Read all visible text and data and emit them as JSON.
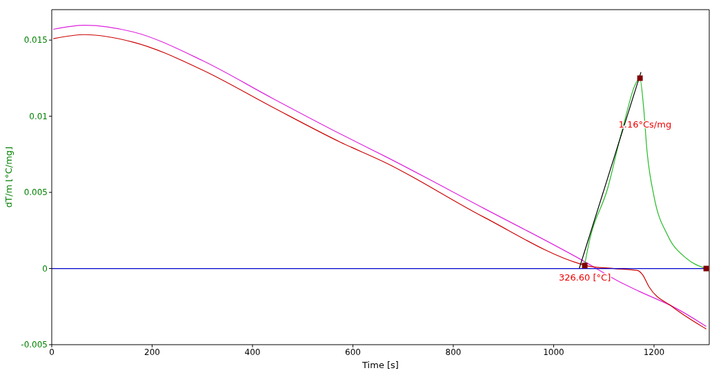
{
  "chart_data": {
    "type": "line",
    "xlabel": "Time [s]",
    "ylabel": "dT/m  [°C/mg]",
    "xlim": [
      0,
      1310
    ],
    "ylim": [
      -0.005,
      0.017
    ],
    "xticks": [
      0,
      200,
      400,
      600,
      800,
      1000,
      1200
    ],
    "yticks": [
      -0.005,
      0,
      0.005,
      0.01,
      0.015
    ],
    "grid": false,
    "marker": "none",
    "line_style": "solid",
    "series": [
      {
        "color": "#dd22dd",
        "x": [
          3,
          66,
          162,
          300,
          438,
          575,
          667,
          860,
          1057,
          1135,
          1172,
          1245,
          1304
        ],
        "values": [
          0.01571,
          0.01598,
          0.01554,
          0.01366,
          0.01121,
          0.00884,
          0.00732,
          0.00397,
          0.00054,
          -0.00094,
          -0.00152,
          -0.00263,
          -0.0038
        ]
      },
      {
        "color": "#cc0000",
        "x": [
          3,
          66,
          162,
          300,
          438,
          575,
          667,
          860,
          1053,
          1066,
          1121,
          1167,
          1177,
          1190,
          1236,
          1304
        ],
        "values": [
          0.01509,
          0.01536,
          0.01487,
          0.01304,
          0.01063,
          0.0083,
          0.00692,
          0.00339,
          0.0003,
          0.00018,
          0,
          -0.00013,
          -0.0004,
          -0.0012,
          -0.0025,
          -0.00397
        ]
      },
      {
        "color": "#22bb22",
        "x": [
          1062,
          1069,
          1108,
          1135,
          1172,
          1179,
          1186,
          1200,
          1227,
          1263,
          1304
        ],
        "values": [
          0.00027,
          0.00147,
          0.00531,
          0.00888,
          0.01246,
          0.01067,
          0.00772,
          0.00473,
          0.00219,
          0.00071,
          0
        ]
      },
      {
        "color": "#000000",
        "x": [
          1051,
          1174
        ],
        "values": [
          0,
          0.0129
        ]
      },
      {
        "color": "#0000cc",
        "x": [
          0,
          1304
        ],
        "values": [
          0,
          0
        ]
      },
      {
        "type": "scatter",
        "color": "#800000",
        "marker": "square",
        "x": [
          1062,
          1172,
          1304
        ],
        "values": [
          0.0002,
          0.0125,
          0
        ]
      }
    ],
    "annotations": [
      {
        "text": "326.60 [°C]",
        "x": 1062,
        "y": 0
      },
      {
        "text": "1.16°Cs/mg",
        "x": 1182,
        "y": 0.0094
      }
    ]
  }
}
